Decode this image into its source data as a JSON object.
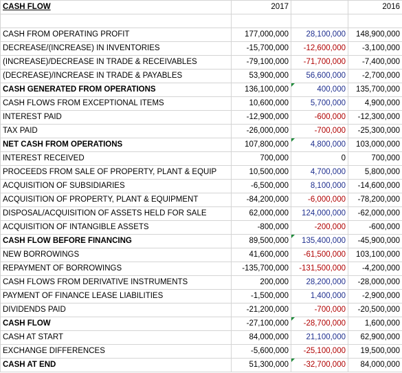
{
  "header": {
    "title": "CASH FLOW",
    "col_2017": "2017",
    "col_mid": "",
    "col_2016": "2016"
  },
  "colors": {
    "blue": "#1f2f8f",
    "red": "#b00000",
    "marker": "#1e8c3a"
  },
  "rows": [
    {
      "label": "CASH FROM OPERATING PROFIT",
      "bold": false,
      "y2017": "177,000,000",
      "mid": "28,100,000",
      "mid_color": "blue",
      "y2016": "148,900,000",
      "marker": false
    },
    {
      "label": "DECREASE/(INCREASE) IN INVENTORIES",
      "bold": false,
      "y2017": "-15,700,000",
      "mid": "-12,600,000",
      "mid_color": "red",
      "y2016": "-3,100,000",
      "marker": false
    },
    {
      "label": "(INCREASE)/DECREASE IN TRADE & RECEIVABLES",
      "bold": false,
      "y2017": "-79,100,000",
      "mid": "-71,700,000",
      "mid_color": "red",
      "y2016": "-7,400,000",
      "marker": false
    },
    {
      "label": "(DECREASE)/INCREASE IN TRADE & PAYABLES",
      "bold": false,
      "y2017": "53,900,000",
      "mid": "56,600,000",
      "mid_color": "blue",
      "y2016": "-2,700,000",
      "marker": false
    },
    {
      "label": "CASH GENERATED FROM OPERATIONS",
      "bold": true,
      "y2017": "136,100,000",
      "mid": "400,000",
      "mid_color": "blue",
      "y2016": "135,700,000",
      "marker": true
    },
    {
      "label": "CASH FLOWS FROM EXCEPTIONAL ITEMS",
      "bold": false,
      "y2017": "10,600,000",
      "mid": "5,700,000",
      "mid_color": "blue",
      "y2016": "4,900,000",
      "marker": false
    },
    {
      "label": "INTEREST PAID",
      "bold": false,
      "y2017": "-12,900,000",
      "mid": "-600,000",
      "mid_color": "red",
      "y2016": "-12,300,000",
      "marker": false
    },
    {
      "label": "TAX PAID",
      "bold": false,
      "y2017": "-26,000,000",
      "mid": "-700,000",
      "mid_color": "red",
      "y2016": "-25,300,000",
      "marker": false
    },
    {
      "label": "NET CASH FROM OPERATIONS",
      "bold": true,
      "y2017": "107,800,000",
      "mid": "4,800,000",
      "mid_color": "blue",
      "y2016": "103,000,000",
      "marker": true
    },
    {
      "label": "INTEREST RECEIVED",
      "bold": false,
      "y2017": "700,000",
      "mid": "0",
      "mid_color": "black",
      "y2016": "700,000",
      "marker": false
    },
    {
      "label": "PROCEEDS FROM SALE OF PROPERTY, PLANT & EQUIP",
      "bold": false,
      "y2017": "10,500,000",
      "mid": "4,700,000",
      "mid_color": "blue",
      "y2016": "5,800,000",
      "marker": false
    },
    {
      "label": "ACQUISITION OF SUBSIDIARIES",
      "bold": false,
      "y2017": "-6,500,000",
      "mid": "8,100,000",
      "mid_color": "blue",
      "y2016": "-14,600,000",
      "marker": false
    },
    {
      "label": "ACQUISITION OF PROPERTY, PLANT & EQUIPMENT",
      "bold": false,
      "y2017": "-84,200,000",
      "mid": "-6,000,000",
      "mid_color": "red",
      "y2016": "-78,200,000",
      "marker": false
    },
    {
      "label": "DISPOSAL/ACQUISITION OF ASSETS HELD FOR SALE",
      "bold": false,
      "y2017": "62,000,000",
      "mid": "124,000,000",
      "mid_color": "blue",
      "y2016": "-62,000,000",
      "marker": false
    },
    {
      "label": "ACQUISITION OF INTANGIBLE ASSETS",
      "bold": false,
      "y2017": "-800,000",
      "mid": "-200,000",
      "mid_color": "red",
      "y2016": "-600,000",
      "marker": false
    },
    {
      "label": "CASH FLOW BEFORE FINANCING",
      "bold": true,
      "y2017": "89,500,000",
      "mid": "135,400,000",
      "mid_color": "blue",
      "y2016": "-45,900,000",
      "marker": true
    },
    {
      "label": "NEW BORROWINGS",
      "bold": false,
      "y2017": "41,600,000",
      "mid": "-61,500,000",
      "mid_color": "red",
      "y2016": "103,100,000",
      "marker": false
    },
    {
      "label": "REPAYMENT OF BORROWINGS",
      "bold": false,
      "y2017": "-135,700,000",
      "mid": "-131,500,000",
      "mid_color": "red",
      "y2016": "-4,200,000",
      "marker": false
    },
    {
      "label": "CASH FLOWS FROM DERIVATIVE INSTRUMENTS",
      "bold": false,
      "y2017": "200,000",
      "mid": "28,200,000",
      "mid_color": "blue",
      "y2016": "-28,000,000",
      "marker": false
    },
    {
      "label": "PAYMENT OF FINANCE LEASE LIABILITIES",
      "bold": false,
      "y2017": "-1,500,000",
      "mid": "1,400,000",
      "mid_color": "blue",
      "y2016": "-2,900,000",
      "marker": false
    },
    {
      "label": "DIVIDENDS PAID",
      "bold": false,
      "y2017": "-21,200,000",
      "mid": "-700,000",
      "mid_color": "red",
      "y2016": "-20,500,000",
      "marker": false
    },
    {
      "label": "CASH FLOW",
      "bold": true,
      "y2017": "-27,100,000",
      "mid": "-28,700,000",
      "mid_color": "red",
      "y2016": "1,600,000",
      "marker": true
    },
    {
      "label": "CASH AT START",
      "bold": false,
      "y2017": "84,000,000",
      "mid": "21,100,000",
      "mid_color": "blue",
      "y2016": "62,900,000",
      "marker": false
    },
    {
      "label": "EXCHANGE DIFFERENCES",
      "bold": false,
      "y2017": "-5,600,000",
      "mid": "-25,100,000",
      "mid_color": "red",
      "y2016": "19,500,000",
      "marker": false
    },
    {
      "label": "CASH AT END",
      "bold": true,
      "y2017": "51,300,000",
      "mid": "-32,700,000",
      "mid_color": "red",
      "y2016": "84,000,000",
      "marker": true
    }
  ]
}
